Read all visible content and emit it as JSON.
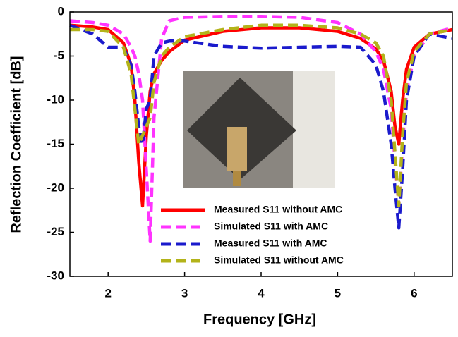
{
  "chart_data": {
    "type": "line",
    "xlabel": "Frequency [GHz]",
    "ylabel": "Reflection Coefficient [dB]",
    "x": [
      1.5,
      1.8,
      2.0,
      2.2,
      2.3,
      2.35,
      2.4,
      2.45,
      2.5,
      2.55,
      2.6,
      2.7,
      2.8,
      3.0,
      3.5,
      4.0,
      4.5,
      5.0,
      5.3,
      5.5,
      5.6,
      5.7,
      5.75,
      5.8,
      5.85,
      5.9,
      6.0,
      6.2,
      6.5
    ],
    "series": [
      {
        "name": "Measured S11 without AMC",
        "color": "#ff0000",
        "dashed": false,
        "values": [
          -1.5,
          -1.7,
          -2.0,
          -3.5,
          -6,
          -10,
          -17,
          -22,
          -14,
          -9,
          -7,
          -5.5,
          -4.5,
          -3.2,
          -2.2,
          -1.8,
          -1.8,
          -2.2,
          -3,
          -4.2,
          -5.5,
          -9,
          -13,
          -15,
          -10,
          -6.5,
          -4,
          -2.5,
          -2
        ]
      },
      {
        "name": "Simulated S11 with AMC",
        "color": "#ff33ff",
        "dashed": true,
        "values": [
          -1,
          -1.2,
          -1.5,
          -2.5,
          -4,
          -5,
          -7,
          -10,
          -18,
          -26,
          -12,
          -3,
          -1,
          -0.6,
          -0.5,
          -0.5,
          -0.6,
          -1.2,
          -2.5,
          -4.5,
          -6.5,
          -11,
          -17,
          -22,
          -15,
          -9,
          -5,
          -2.5,
          -1.8
        ]
      },
      {
        "name": "Measured S11 with AMC",
        "color": "#1a1acc",
        "dashed": true,
        "values": [
          -1.5,
          -2.5,
          -4,
          -4,
          -6,
          -9,
          -13,
          -15,
          -11,
          -10,
          -5,
          -3.5,
          -3.3,
          -3.3,
          -3.9,
          -4.1,
          -4,
          -3.9,
          -4,
          -6,
          -9,
          -15,
          -20,
          -24.5,
          -18,
          -10,
          -5,
          -2.5,
          -3
        ]
      },
      {
        "name": "Simulated S11 without AMC",
        "color": "#b3b31a",
        "dashed": true,
        "values": [
          -2,
          -2,
          -2.2,
          -4,
          -7,
          -11,
          -15,
          -14,
          -13,
          -12,
          -8,
          -5,
          -4,
          -2.8,
          -2,
          -1.5,
          -1.5,
          -1.8,
          -2.5,
          -3.5,
          -5,
          -10,
          -16,
          -22,
          -14,
          -8,
          -4.5,
          -2.5,
          -2
        ]
      }
    ],
    "xlim": [
      1.5,
      6.5
    ],
    "xticks": [
      2,
      3,
      4,
      5,
      6
    ],
    "ylim": [
      -30,
      0
    ],
    "yticks": [
      0,
      -5,
      -10,
      -15,
      -20,
      -25,
      -30
    ],
    "grid": false,
    "legend": "lower center"
  }
}
